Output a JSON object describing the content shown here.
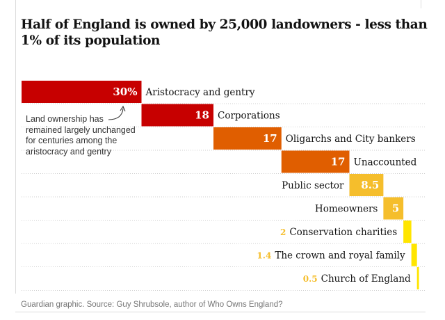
{
  "chart_data": {
    "type": "bar",
    "title": "Half of England is owned by 25,000 landowners - less than 1% of its population",
    "categories": [
      "Aristocracy and gentry",
      "Corporations",
      "Oligarchs and City bankers",
      "Unaccounted",
      "Public sector",
      "Homeowners",
      "Conservation charities",
      "The crown and royal family",
      "Church of England"
    ],
    "values": [
      30,
      18,
      17,
      17,
      8.5,
      5,
      2,
      1.4,
      0.5
    ],
    "value_labels": [
      "30%",
      "18",
      "17",
      "17",
      "8.5",
      "5",
      "2",
      "1.4",
      "0.5"
    ],
    "unit": "%",
    "colors": [
      "#c70000",
      "#c70000",
      "#e05e00",
      "#e05e00",
      "#f5be2c",
      "#f5be2c",
      "#ffe500",
      "#ffe500",
      "#ffe500"
    ],
    "value_text_colors": [
      "#ffffff",
      "#ffffff",
      "#ffffff",
      "#ffffff",
      "#ffffff",
      "#ffffff",
      "#f5be2c",
      "#f5be2c",
      "#f5be2c"
    ],
    "stacked_waterfall": true,
    "xlim": [
      0,
      100
    ],
    "grid": "dotted horizontal",
    "annotation": "Land ownership has remained largely unchanged for centuries among the aristocracy and gentry",
    "source": "Guardian graphic. Source: Guy Shrubsole, author of Who Owns England?"
  }
}
